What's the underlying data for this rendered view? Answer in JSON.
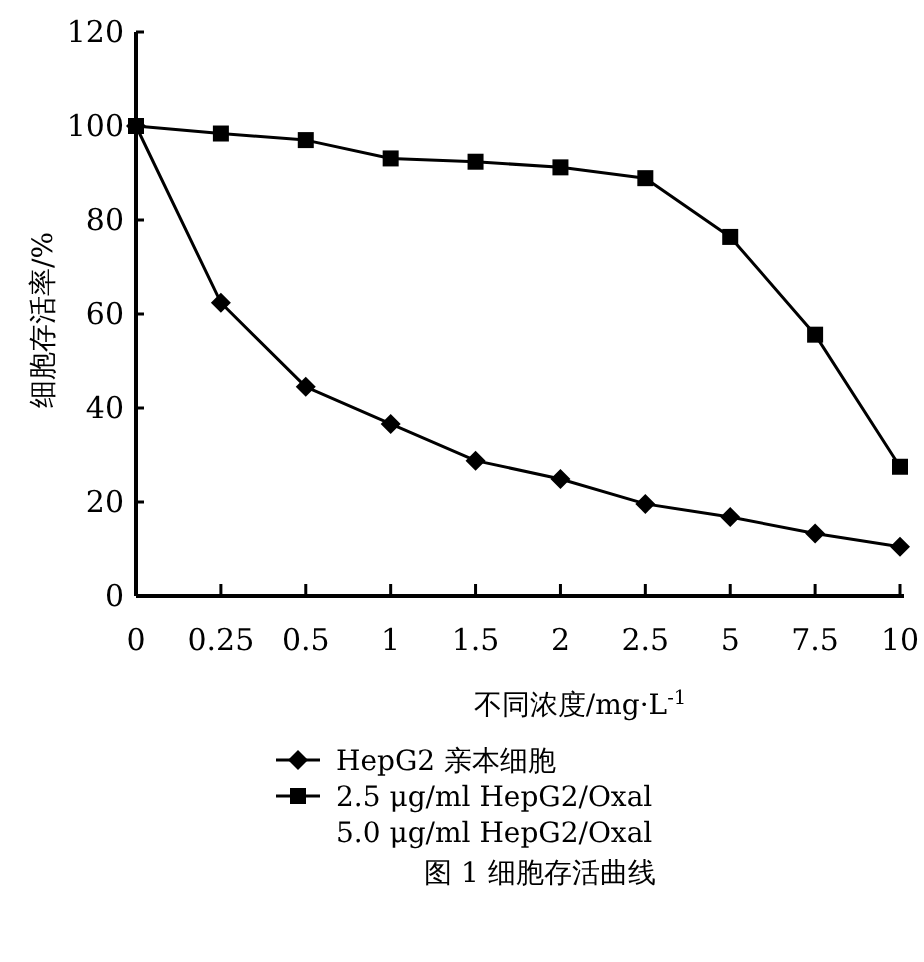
{
  "chart_data": {
    "type": "line",
    "title": "图 1  细胞存活曲线",
    "xlabel": "不同浓度/mg·L$^{-1}$",
    "ylabel": "细胞存活率/%",
    "categories": [
      "0",
      "0.25",
      "0.5",
      "1",
      "1.5",
      "2",
      "2.5",
      "5",
      "7.5",
      "10"
    ],
    "series": [
      {
        "name": "HepG2 亲本细胞",
        "color": "#000000",
        "marker": "diamond",
        "values": [
          100,
          62.4,
          44.5,
          36.6,
          28.8,
          24.9,
          19.6,
          16.8,
          13.3,
          10.5
        ]
      },
      {
        "name": "2.5 μg/ml HepG2/Oxal",
        "color": "#000000",
        "marker": "square",
        "values": [
          100,
          98.4,
          97,
          93.1,
          92.4,
          91.2,
          88.9,
          76.4,
          55.6,
          27.5
        ]
      }
    ],
    "annotations": [
      "5.0 μg/ml HepG2/Oxal"
    ],
    "ylim": [
      0,
      120
    ],
    "yticks": [
      0,
      20,
      40,
      60,
      80,
      100,
      120
    ],
    "legend": "bottom",
    "grid": false
  }
}
